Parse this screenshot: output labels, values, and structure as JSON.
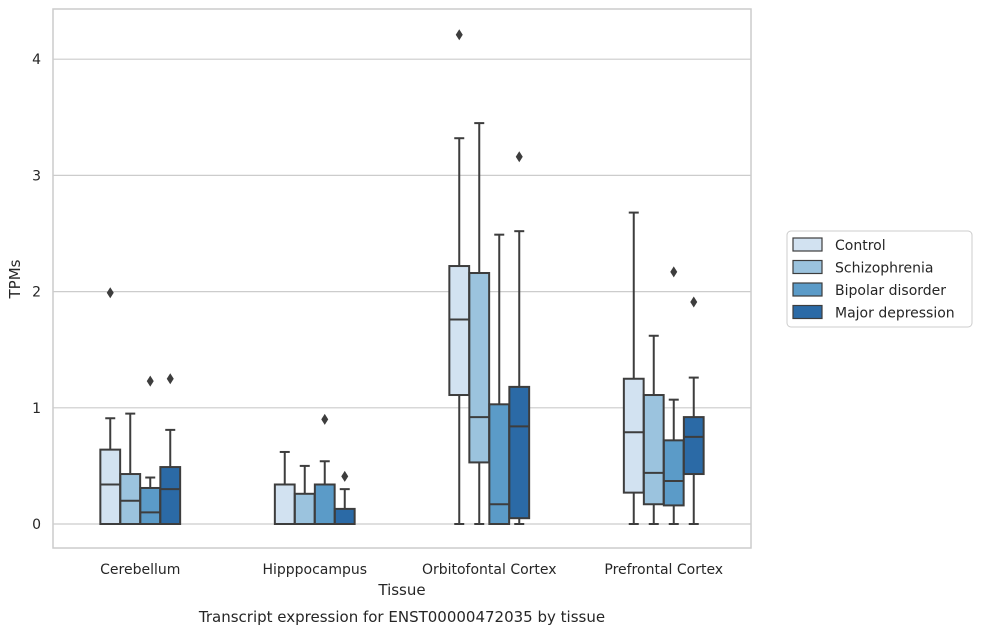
{
  "chart_data": {
    "type": "boxplot",
    "title": "",
    "caption": "Transcript expression for ENST00000472035 by tissue",
    "xlabel": "Tissue",
    "ylabel": "TPMs",
    "ylim": [
      -0.2,
      4.3
    ],
    "yticks": [
      0,
      1,
      2,
      3,
      4
    ],
    "grid": "horizontal",
    "legend_position": "right",
    "categories": [
      "Cerebellum",
      "Hipppocampus",
      "Orbitofontal Cortex",
      "Prefrontal Cortex"
    ],
    "series": [
      {
        "name": "Control",
        "color": "#d2e2f1",
        "boxes": [
          {
            "whislo": 0,
            "q1": 0,
            "med": 0.34,
            "q3": 0.64,
            "whishi": 0.91,
            "fliers": [
              1.99
            ]
          },
          {
            "whislo": 0,
            "q1": 0,
            "med": 0,
            "q3": 0.34,
            "whishi": 0.62,
            "fliers": []
          },
          {
            "whislo": 0,
            "q1": 1.11,
            "med": 1.76,
            "q3": 2.22,
            "whishi": 3.32,
            "fliers": [
              4.21
            ]
          },
          {
            "whislo": 0,
            "q1": 0.27,
            "med": 0.79,
            "q3": 1.25,
            "whishi": 2.68,
            "fliers": []
          }
        ]
      },
      {
        "name": "Schizophrenia",
        "color": "#9bc3de",
        "boxes": [
          {
            "whislo": 0,
            "q1": 0,
            "med": 0.2,
            "q3": 0.43,
            "whishi": 0.95,
            "fliers": []
          },
          {
            "whislo": 0,
            "q1": 0,
            "med": 0,
            "q3": 0.26,
            "whishi": 0.5,
            "fliers": []
          },
          {
            "whislo": 0,
            "q1": 0.53,
            "med": 0.92,
            "q3": 2.16,
            "whishi": 3.45,
            "fliers": []
          },
          {
            "whislo": 0,
            "q1": 0.17,
            "med": 0.44,
            "q3": 1.11,
            "whishi": 1.62,
            "fliers": []
          }
        ]
      },
      {
        "name": "Bipolar disorder",
        "color": "#5b9bc8",
        "boxes": [
          {
            "whislo": 0,
            "q1": 0,
            "med": 0.1,
            "q3": 0.31,
            "whishi": 0.4,
            "fliers": [
              1.23
            ]
          },
          {
            "whislo": 0,
            "q1": 0,
            "med": 0,
            "q3": 0.34,
            "whishi": 0.54,
            "fliers": [
              0.9
            ]
          },
          {
            "whislo": 0,
            "q1": 0,
            "med": 0.17,
            "q3": 1.03,
            "whishi": 2.49,
            "fliers": []
          },
          {
            "whislo": 0,
            "q1": 0.16,
            "med": 0.37,
            "q3": 0.72,
            "whishi": 1.07,
            "fliers": [
              2.17
            ]
          }
        ]
      },
      {
        "name": "Major depression",
        "color": "#2b6aa6",
        "boxes": [
          {
            "whislo": 0,
            "q1": 0,
            "med": 0.3,
            "q3": 0.49,
            "whishi": 0.81,
            "fliers": [
              1.25
            ]
          },
          {
            "whislo": 0,
            "q1": 0,
            "med": 0,
            "q3": 0.13,
            "whishi": 0.3,
            "fliers": [
              0.41
            ]
          },
          {
            "whislo": 0,
            "q1": 0.05,
            "med": 0.84,
            "q3": 1.18,
            "whishi": 2.52,
            "fliers": [
              3.16
            ]
          },
          {
            "whislo": 0,
            "q1": 0.43,
            "med": 0.75,
            "q3": 0.92,
            "whishi": 1.26,
            "fliers": [
              1.91
            ]
          }
        ]
      }
    ]
  }
}
